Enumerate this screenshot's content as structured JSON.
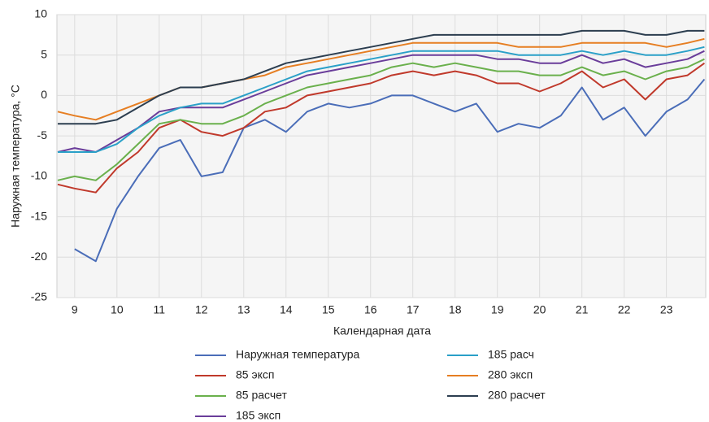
{
  "chart_data": {
    "type": "line",
    "x_label": "Календарная дата",
    "y_label": "Наружная температура, °C",
    "x": [
      8.6,
      9,
      9.5,
      10,
      10.5,
      11,
      11.5,
      12,
      12.5,
      13,
      13.5,
      14,
      14.5,
      15,
      15.5,
      16,
      16.5,
      17,
      17.5,
      18,
      18.5,
      19,
      19.5,
      20,
      20.5,
      21,
      21.5,
      22,
      22.5,
      23,
      23.5,
      23.9
    ],
    "series": [
      {
        "name": "Наружная температура",
        "color": "#4a6db8",
        "values": [
          null,
          -19,
          -20.5,
          -14,
          -10,
          -6.5,
          -5.5,
          -10,
          -9.5,
          -4,
          -3,
          -4.5,
          -2,
          -1,
          -1.5,
          -1,
          0,
          0,
          -1,
          -2,
          -1,
          -4.5,
          -3.5,
          -4,
          -2.5,
          1,
          -3,
          -1.5,
          -5,
          -2,
          -0.5,
          2
        ]
      },
      {
        "name": "85 эксп",
        "color": "#c0392b",
        "values": [
          -11,
          -11.5,
          -12,
          -9,
          -7,
          -4,
          -3,
          -4.5,
          -5,
          -4,
          -2,
          -1.5,
          0,
          0.5,
          1,
          1.5,
          2.5,
          3,
          2.5,
          3,
          2.5,
          1.5,
          1.5,
          0.5,
          1.5,
          3,
          1,
          2,
          -0.5,
          2,
          2.5,
          4
        ]
      },
      {
        "name": "85 расчет",
        "color": "#6ab04c",
        "values": [
          -10.5,
          -10,
          -10.5,
          -8.5,
          -6,
          -3.5,
          -3,
          -3.5,
          -3.5,
          -2.5,
          -1,
          0,
          1,
          1.5,
          2,
          2.5,
          3.5,
          4,
          3.5,
          4,
          3.5,
          3,
          3,
          2.5,
          2.5,
          3.5,
          2.5,
          3,
          2,
          3,
          3.5,
          4.5
        ]
      },
      {
        "name": "185 эксп",
        "color": "#6a3d9a",
        "values": [
          -7,
          -6.5,
          -7,
          -5.5,
          -4,
          -2,
          -1.5,
          -1.5,
          -1.5,
          -0.5,
          0.5,
          1.5,
          2.5,
          3,
          3.5,
          4,
          4.5,
          5,
          5,
          5,
          5,
          4.5,
          4.5,
          4,
          4,
          5,
          4,
          4.5,
          3.5,
          4,
          4.5,
          5.5
        ]
      },
      {
        "name": "185 расч",
        "color": "#2aa0c8",
        "values": [
          -7,
          -7,
          -7,
          -6,
          -4,
          -2.5,
          -1.5,
          -1,
          -1,
          0,
          1,
          2,
          3,
          3.5,
          4,
          4.5,
          5,
          5.5,
          5.5,
          5.5,
          5.5,
          5.5,
          5,
          5,
          5,
          5.5,
          5,
          5.5,
          5,
          5,
          5.5,
          6
        ]
      },
      {
        "name": "280 эксп",
        "color": "#e67e22",
        "values": [
          -2,
          -2.5,
          -3,
          -2,
          -1,
          0,
          1,
          1,
          1.5,
          2,
          2.5,
          3.5,
          4,
          4.5,
          5,
          5.5,
          6,
          6.5,
          6.5,
          6.5,
          6.5,
          6.5,
          6,
          6,
          6,
          6.5,
          6.5,
          6.5,
          6.5,
          6,
          6.5,
          7
        ]
      },
      {
        "name": "280 расчет",
        "color": "#2c3e50",
        "values": [
          -3.5,
          -3.5,
          -3.5,
          -3,
          -1.5,
          0,
          1,
          1,
          1.5,
          2,
          3,
          4,
          4.5,
          5,
          5.5,
          6,
          6.5,
          7,
          7.5,
          7.5,
          7.5,
          7.5,
          7.5,
          7.5,
          7.5,
          8,
          8,
          8,
          7.5,
          7.5,
          8,
          8
        ]
      }
    ],
    "xlim": [
      8.58,
      23.93
    ],
    "xticks": [
      9,
      10,
      11,
      12,
      13,
      14,
      15,
      16,
      17,
      18,
      19,
      20,
      21,
      22,
      23
    ],
    "ylim": [
      -25,
      10
    ],
    "yticks": [
      -25,
      -20,
      -15,
      -10,
      -5,
      0,
      5,
      10
    ],
    "grid": true
  }
}
